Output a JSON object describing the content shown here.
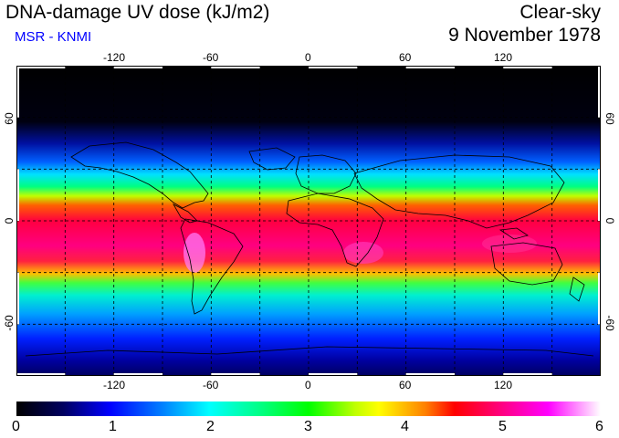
{
  "header": {
    "title": "DNA-damage UV dose (kJ/m2)",
    "subtitle": "MSR - KNMI",
    "condition": "Clear-sky",
    "date": "9 November 1978"
  },
  "map": {
    "lon_ticks": [
      "-120",
      "-60",
      "0",
      "60",
      "120"
    ],
    "lat_ticks": [
      "60",
      "0",
      "-60"
    ],
    "lon_range": [
      -180,
      180
    ],
    "lat_range": [
      -90,
      90
    ],
    "grid_lon_step": 30,
    "grid_lat_step": 30
  },
  "legend": {
    "ticks": [
      "0",
      "1",
      "2",
      "3",
      "4",
      "5",
      "6"
    ],
    "range": [
      0,
      6
    ],
    "colors": [
      "#000000",
      "#0000ff",
      "#00e5ff",
      "#00ff00",
      "#ffff00",
      "#ff0000",
      "#ff00ff",
      "#ffffff"
    ]
  },
  "colors": {
    "subtitle": "#0000ff",
    "coastline": "#000000",
    "grid": "#000000"
  }
}
